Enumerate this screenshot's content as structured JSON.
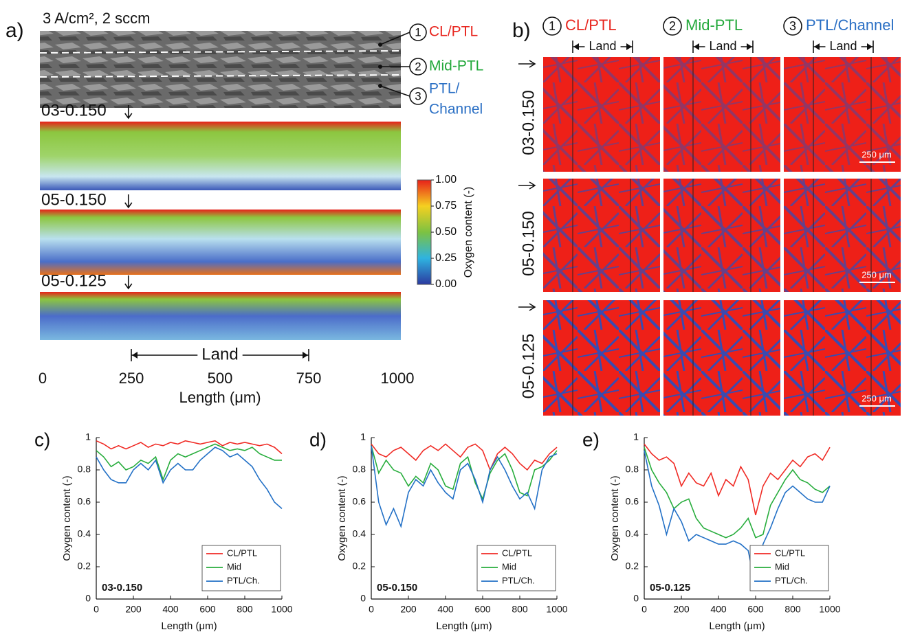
{
  "panel_a": {
    "label": "a)",
    "condition": "3 A/cm², 2 sccm",
    "layers": [
      {
        "number": "1",
        "label": [
          "CL/PTL"
        ],
        "color": "#e8261f"
      },
      {
        "number": "2",
        "label": [
          "Mid-PTL"
        ],
        "color": "#22a83a"
      },
      {
        "number": "3",
        "label": [
          "PTL/",
          "Channel"
        ],
        "color": "#2a6fc4"
      }
    ],
    "maps": [
      "03-0.150",
      "05-0.150",
      "05-0.125"
    ],
    "colorbar": {
      "label": "Oxygen content (-)",
      "lim": [
        0,
        1
      ],
      "ticks": [
        {
          "value": 0,
          "label": "0.00"
        },
        {
          "value": 0.25,
          "label": "0.25"
        },
        {
          "value": 0.5,
          "label": "0.50"
        },
        {
          "value": 0.75,
          "label": "0.75"
        },
        {
          "value": 1,
          "label": "1.00"
        }
      ]
    },
    "length_axis": {
      "label": "Length (μm)",
      "lim": [
        0,
        1000
      ],
      "ticks": [
        0,
        250,
        500,
        750,
        1000
      ]
    },
    "land": {
      "label": "Land",
      "range": [
        250,
        750
      ]
    }
  },
  "panel_b": {
    "label": "b)",
    "columns": [
      {
        "number": "1",
        "label": "CL/PTL",
        "color": "#e8261f"
      },
      {
        "number": "2",
        "label": "Mid-PTL",
        "color": "#22a83a"
      },
      {
        "number": "3",
        "label": "PTL/Channel",
        "color": "#2a6fc4"
      }
    ],
    "land": "Land",
    "rows": [
      "03-0.150",
      "05-0.150",
      "05-0.125"
    ],
    "scale_bar": "250 μm"
  },
  "chart_data": [
    {
      "type": "line",
      "panel_label": "c)",
      "annotation": "03-0.150",
      "x_label": "Length (μm)",
      "y_label": "Oxygen content (-)",
      "x": [
        0,
        40,
        80,
        120,
        160,
        200,
        240,
        280,
        320,
        360,
        400,
        440,
        480,
        520,
        560,
        600,
        640,
        680,
        720,
        760,
        800,
        840,
        880,
        920,
        960,
        1000
      ],
      "xlim": [
        0,
        1000
      ],
      "ylim": [
        0,
        1
      ],
      "xticks": [
        0,
        200,
        400,
        600,
        800,
        1000
      ],
      "yticks": [
        0,
        0.2,
        0.4,
        0.6,
        0.8,
        1
      ],
      "legend": "lower right",
      "series": [
        {
          "name": "CL/PTL",
          "color": "#f02a24",
          "values": [
            0.98,
            0.96,
            0.93,
            0.95,
            0.93,
            0.95,
            0.97,
            0.94,
            0.96,
            0.95,
            0.97,
            0.96,
            0.98,
            0.97,
            0.96,
            0.97,
            0.98,
            0.95,
            0.97,
            0.96,
            0.97,
            0.96,
            0.95,
            0.96,
            0.94,
            0.9
          ]
        },
        {
          "name": "Mid",
          "color": "#27ad3c",
          "values": [
            0.92,
            0.88,
            0.82,
            0.85,
            0.8,
            0.82,
            0.86,
            0.84,
            0.88,
            0.74,
            0.86,
            0.9,
            0.88,
            0.9,
            0.92,
            0.94,
            0.96,
            0.94,
            0.92,
            0.93,
            0.92,
            0.94,
            0.9,
            0.88,
            0.86,
            0.86
          ]
        },
        {
          "name": "PTL/Ch.",
          "color": "#2270c6",
          "values": [
            0.88,
            0.8,
            0.74,
            0.72,
            0.72,
            0.8,
            0.84,
            0.8,
            0.86,
            0.72,
            0.8,
            0.84,
            0.8,
            0.8,
            0.86,
            0.9,
            0.94,
            0.92,
            0.88,
            0.9,
            0.86,
            0.82,
            0.74,
            0.68,
            0.6,
            0.56
          ]
        }
      ]
    },
    {
      "type": "line",
      "panel_label": "d)",
      "annotation": "05-0.150",
      "x_label": "Length (μm)",
      "y_label": "Oxygen content (-)",
      "x": [
        0,
        40,
        80,
        120,
        160,
        200,
        240,
        280,
        320,
        360,
        400,
        440,
        480,
        520,
        560,
        600,
        640,
        680,
        720,
        760,
        800,
        840,
        880,
        920,
        960,
        1000
      ],
      "xlim": [
        0,
        1000
      ],
      "ylim": [
        0,
        1
      ],
      "xticks": [
        0,
        200,
        400,
        600,
        800,
        1000
      ],
      "yticks": [
        0,
        0.2,
        0.4,
        0.6,
        0.8,
        1
      ],
      "legend": "lower right",
      "series": [
        {
          "name": "CL/PTL",
          "color": "#f02a24",
          "values": [
            0.96,
            0.9,
            0.88,
            0.92,
            0.94,
            0.9,
            0.86,
            0.92,
            0.95,
            0.92,
            0.96,
            0.92,
            0.88,
            0.94,
            0.96,
            0.92,
            0.8,
            0.9,
            0.94,
            0.9,
            0.84,
            0.8,
            0.86,
            0.84,
            0.9,
            0.94
          ]
        },
        {
          "name": "Mid",
          "color": "#27ad3c",
          "values": [
            0.95,
            0.78,
            0.86,
            0.8,
            0.78,
            0.7,
            0.76,
            0.72,
            0.84,
            0.8,
            0.7,
            0.68,
            0.84,
            0.88,
            0.72,
            0.62,
            0.78,
            0.86,
            0.9,
            0.8,
            0.66,
            0.64,
            0.8,
            0.82,
            0.86,
            0.92
          ]
        },
        {
          "name": "PTL/Ch.",
          "color": "#2270c6",
          "values": [
            0.95,
            0.6,
            0.46,
            0.56,
            0.45,
            0.66,
            0.74,
            0.7,
            0.8,
            0.72,
            0.66,
            0.62,
            0.8,
            0.84,
            0.74,
            0.6,
            0.8,
            0.88,
            0.8,
            0.7,
            0.62,
            0.66,
            0.56,
            0.8,
            0.88,
            0.9
          ]
        }
      ]
    },
    {
      "type": "line",
      "panel_label": "e)",
      "annotation": "05-0.125",
      "x_label": "Length (μm)",
      "y_label": "Oxygen content (-)",
      "x": [
        0,
        40,
        80,
        120,
        160,
        200,
        240,
        280,
        320,
        360,
        400,
        440,
        480,
        520,
        560,
        600,
        640,
        680,
        720,
        760,
        800,
        840,
        880,
        920,
        960,
        1000
      ],
      "xlim": [
        0,
        1000
      ],
      "ylim": [
        0,
        1
      ],
      "xticks": [
        0,
        200,
        400,
        600,
        800,
        1000
      ],
      "yticks": [
        0,
        0.2,
        0.4,
        0.6,
        0.8,
        1
      ],
      "legend": "lower right",
      "series": [
        {
          "name": "CL/PTL",
          "color": "#f02a24",
          "values": [
            0.96,
            0.9,
            0.86,
            0.88,
            0.84,
            0.7,
            0.78,
            0.72,
            0.7,
            0.78,
            0.64,
            0.74,
            0.7,
            0.82,
            0.74,
            0.52,
            0.7,
            0.78,
            0.74,
            0.8,
            0.86,
            0.82,
            0.88,
            0.9,
            0.86,
            0.94
          ]
        },
        {
          "name": "Mid",
          "color": "#27ad3c",
          "values": [
            0.94,
            0.8,
            0.72,
            0.66,
            0.56,
            0.6,
            0.62,
            0.5,
            0.44,
            0.42,
            0.4,
            0.38,
            0.4,
            0.44,
            0.5,
            0.38,
            0.4,
            0.58,
            0.66,
            0.74,
            0.8,
            0.74,
            0.72,
            0.68,
            0.66,
            0.7
          ]
        },
        {
          "name": "PTL/Ch.",
          "color": "#2270c6",
          "values": [
            0.92,
            0.7,
            0.58,
            0.4,
            0.56,
            0.48,
            0.36,
            0.4,
            0.38,
            0.36,
            0.34,
            0.34,
            0.36,
            0.34,
            0.3,
            0.08,
            0.34,
            0.44,
            0.56,
            0.66,
            0.7,
            0.66,
            0.62,
            0.6,
            0.6,
            0.7
          ]
        }
      ]
    }
  ]
}
